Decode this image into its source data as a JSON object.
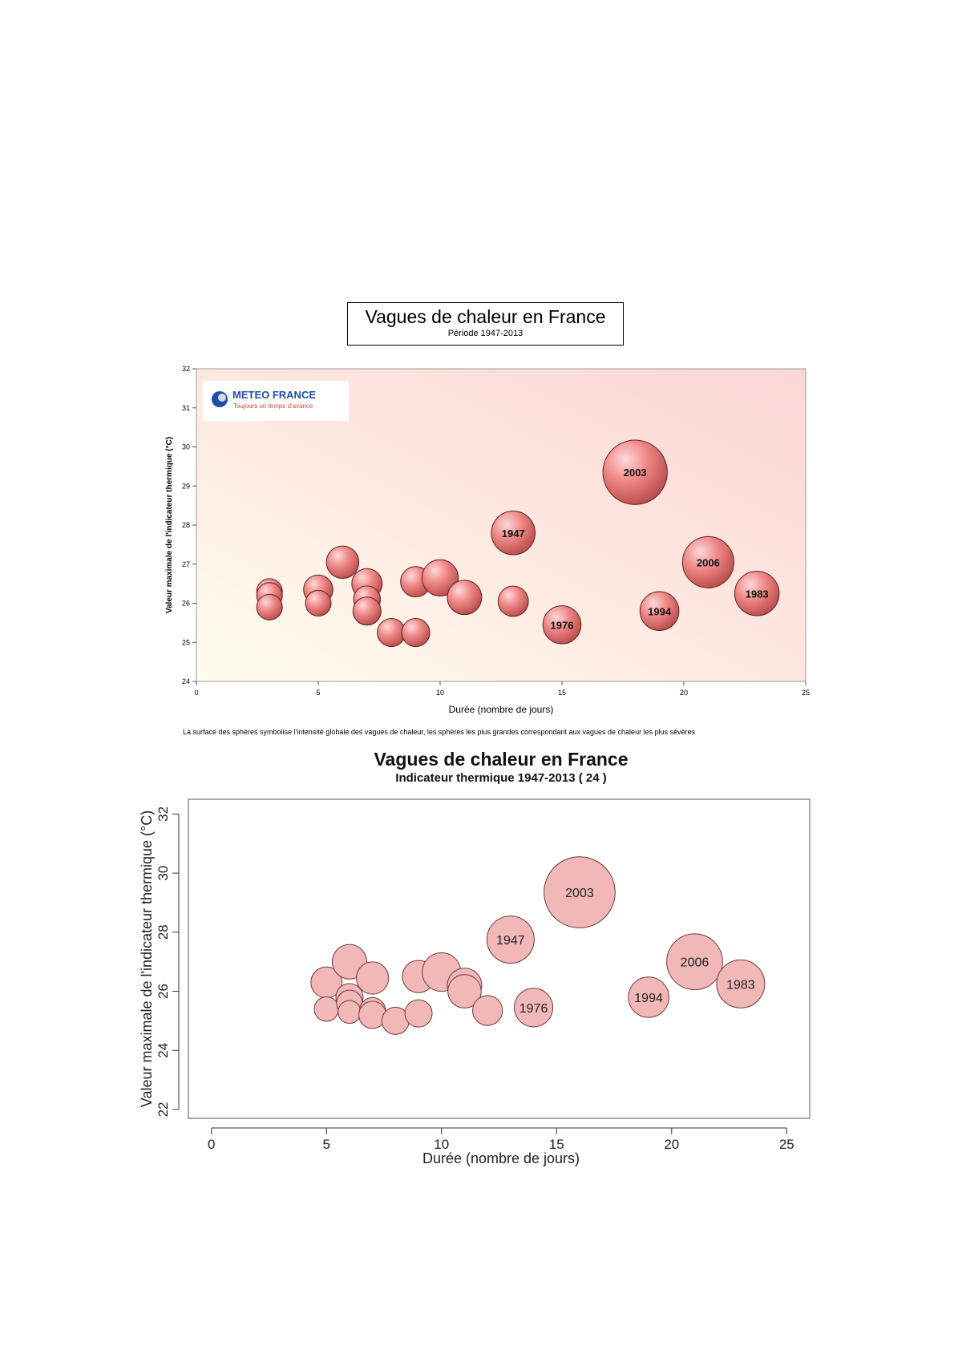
{
  "chart_data": [
    {
      "type": "scatter",
      "title": "Vagues de chaleur en France",
      "subtitle": "Période 1947-2013",
      "xlabel": "Durée (nombre de jours)",
      "ylabel": "Valeur maximale de l'indicateur thermique (°C)",
      "xlim": [
        0,
        25
      ],
      "ylim": [
        24,
        32
      ],
      "xticks": [
        0,
        5,
        10,
        15,
        20,
        25
      ],
      "yticks": [
        24,
        25,
        26,
        27,
        28,
        29,
        30,
        31,
        32
      ],
      "logo": {
        "name": "METEO FRANCE",
        "tagline": "Toujours un temps d'avance"
      },
      "caption": "La surface des sphères symbolise l'intensité globale des vagues de chaleur, les sphères les plus grandes correspondant aux vagues de chaleur les plus sévères",
      "bubble_color": "#e87f7f",
      "points": [
        {
          "x": 3,
          "y": 26.3,
          "size": 1,
          "label": ""
        },
        {
          "x": 3,
          "y": 26.2,
          "size": 1,
          "label": ""
        },
        {
          "x": 3,
          "y": 25.9,
          "size": 1,
          "label": ""
        },
        {
          "x": 5,
          "y": 26.35,
          "size": 1.3,
          "label": ""
        },
        {
          "x": 5,
          "y": 26.0,
          "size": 1,
          "label": ""
        },
        {
          "x": 6,
          "y": 27.05,
          "size": 1.6,
          "label": ""
        },
        {
          "x": 7,
          "y": 26.5,
          "size": 1.4,
          "label": ""
        },
        {
          "x": 7,
          "y": 26.1,
          "size": 1.1,
          "label": ""
        },
        {
          "x": 7,
          "y": 25.8,
          "size": 1.2,
          "label": ""
        },
        {
          "x": 8,
          "y": 25.25,
          "size": 1.2,
          "label": ""
        },
        {
          "x": 9,
          "y": 26.55,
          "size": 1.4,
          "label": ""
        },
        {
          "x": 9,
          "y": 25.25,
          "size": 1.2,
          "label": ""
        },
        {
          "x": 10,
          "y": 26.65,
          "size": 2.0,
          "label": ""
        },
        {
          "x": 11,
          "y": 26.15,
          "size": 1.8,
          "label": ""
        },
        {
          "x": 13,
          "y": 26.05,
          "size": 1.4,
          "label": ""
        },
        {
          "x": 13,
          "y": 27.8,
          "size": 2.9,
          "label": "1947"
        },
        {
          "x": 15,
          "y": 25.45,
          "size": 2.2,
          "label": "1976"
        },
        {
          "x": 18,
          "y": 29.35,
          "size": 6.3,
          "label": "2003"
        },
        {
          "x": 19,
          "y": 25.8,
          "size": 2.3,
          "label": "1994"
        },
        {
          "x": 21,
          "y": 27.05,
          "size": 4.0,
          "label": "2006"
        },
        {
          "x": 23,
          "y": 26.25,
          "size": 3.0,
          "label": "1983"
        }
      ]
    },
    {
      "type": "scatter",
      "title": "Vagues de chaleur en France",
      "subtitle": "Indicateur thermique 1947-2013 ( 24 )",
      "xlabel": "Durée (nombre de jours)",
      "ylabel": "Valeur maximale de l'indicateur thermique (°C)",
      "xlim": [
        -1,
        26
      ],
      "ylim": [
        21.7,
        32.5
      ],
      "xticks": [
        0,
        5,
        10,
        15,
        20,
        25
      ],
      "yticks": [
        22,
        24,
        26,
        28,
        30,
        32
      ],
      "bubble_color": "#f2b8b8",
      "points": [
        {
          "x": 5,
          "y": 26.3,
          "size": 1.3,
          "label": ""
        },
        {
          "x": 5,
          "y": 25.4,
          "size": 0.8,
          "label": ""
        },
        {
          "x": 6,
          "y": 27.0,
          "size": 1.6,
          "label": ""
        },
        {
          "x": 6,
          "y": 25.8,
          "size": 1.0,
          "label": ""
        },
        {
          "x": 6,
          "y": 25.6,
          "size": 0.9,
          "label": ""
        },
        {
          "x": 6,
          "y": 25.3,
          "size": 0.7,
          "label": ""
        },
        {
          "x": 7,
          "y": 26.45,
          "size": 1.4,
          "label": ""
        },
        {
          "x": 7,
          "y": 25.35,
          "size": 0.9,
          "label": ""
        },
        {
          "x": 7,
          "y": 25.2,
          "size": 1.0,
          "label": ""
        },
        {
          "x": 8,
          "y": 25.0,
          "size": 1.0,
          "label": ""
        },
        {
          "x": 9,
          "y": 26.5,
          "size": 1.4,
          "label": ""
        },
        {
          "x": 9,
          "y": 25.25,
          "size": 1.0,
          "label": ""
        },
        {
          "x": 10,
          "y": 26.65,
          "size": 2.0,
          "label": ""
        },
        {
          "x": 11,
          "y": 26.2,
          "size": 1.6,
          "label": ""
        },
        {
          "x": 11,
          "y": 26.0,
          "size": 1.5,
          "label": ""
        },
        {
          "x": 12,
          "y": 25.35,
          "size": 1.2,
          "label": ""
        },
        {
          "x": 13,
          "y": 27.75,
          "size": 3.0,
          "label": "1947"
        },
        {
          "x": 14,
          "y": 25.45,
          "size": 2.0,
          "label": "1976"
        },
        {
          "x": 16,
          "y": 29.35,
          "size": 6.8,
          "label": "2003"
        },
        {
          "x": 19,
          "y": 25.8,
          "size": 2.2,
          "label": "1994"
        },
        {
          "x": 21,
          "y": 27.0,
          "size": 4.2,
          "label": "2006"
        },
        {
          "x": 23,
          "y": 26.25,
          "size": 3.1,
          "label": "1983"
        }
      ]
    }
  ]
}
